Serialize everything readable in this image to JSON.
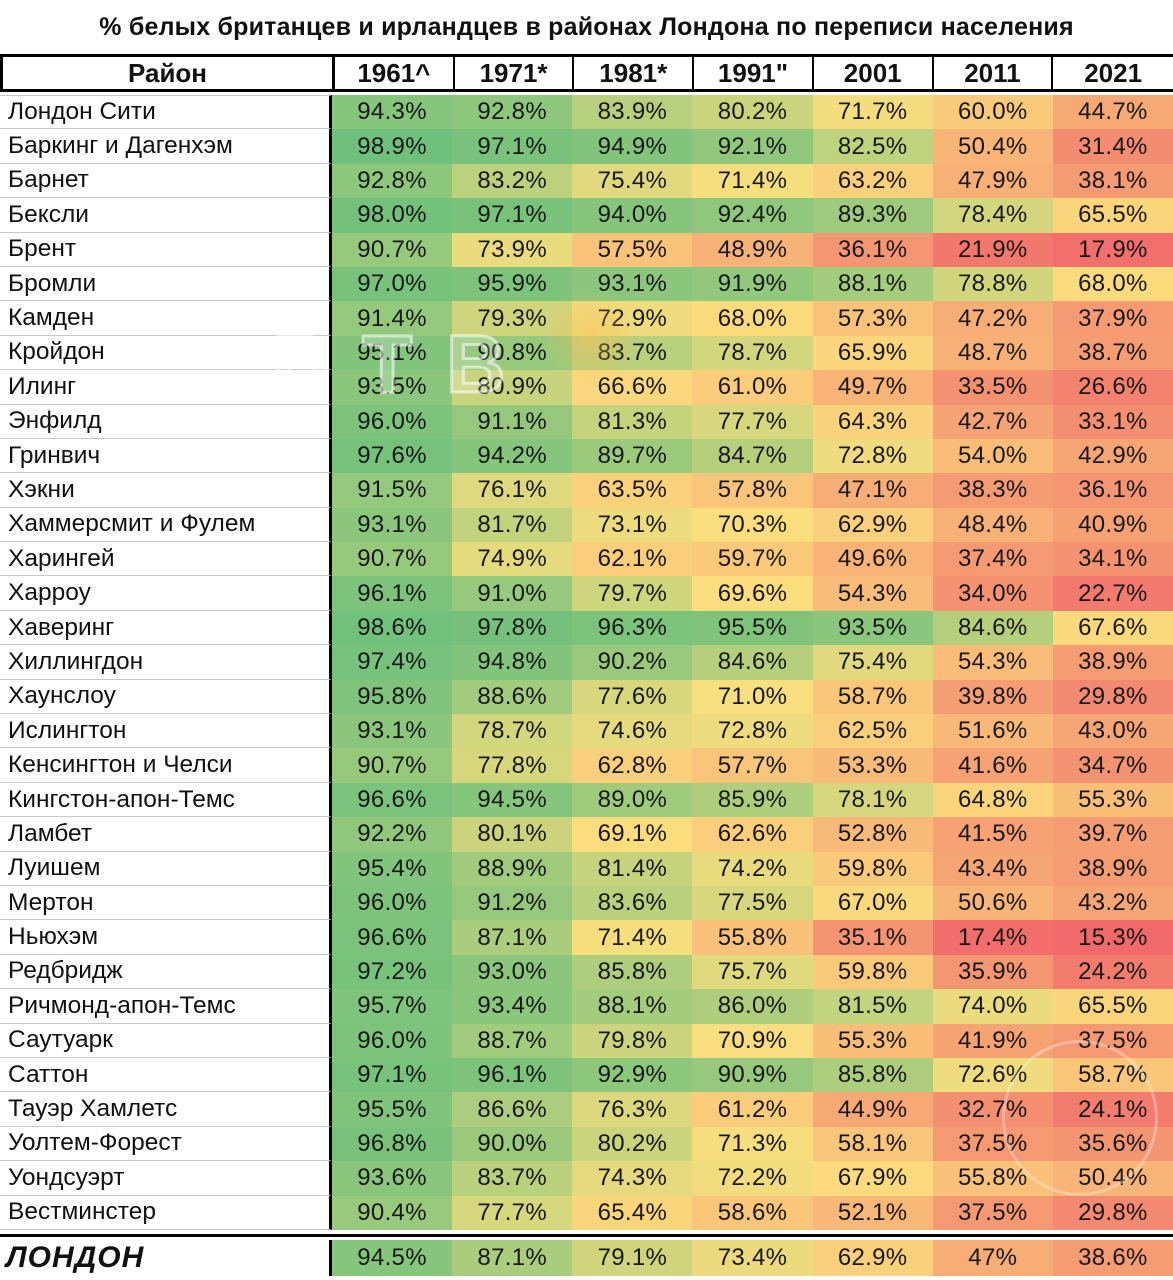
{
  "title": "% белых британцев и ирландцев в районах Лондона по переписи населения",
  "watermark_text": "ВТВ",
  "table": {
    "district_header": "Район",
    "year_headers": [
      "1961^",
      "1971*",
      "1981*",
      "1991\"",
      "2001",
      "2011",
      "2021"
    ],
    "value_suffix": "%"
  },
  "chart_data": {
    "type": "heatmap",
    "title": "% белых британцев и ирландцев в районах Лондона по переписи населения",
    "columns": [
      "1961",
      "1971",
      "1981",
      "1991",
      "2001",
      "2011",
      "2021"
    ],
    "rows": [
      {
        "name": "Лондон Сити",
        "values": [
          94.3,
          92.8,
          83.9,
          80.2,
          71.7,
          60.0,
          44.7
        ]
      },
      {
        "name": "Баркинг и Дагенхэм",
        "values": [
          98.9,
          97.1,
          94.9,
          92.1,
          82.5,
          50.4,
          31.4
        ]
      },
      {
        "name": "Барнет",
        "values": [
          92.8,
          83.2,
          75.4,
          71.4,
          63.2,
          47.9,
          38.1
        ]
      },
      {
        "name": "Бексли",
        "values": [
          98.0,
          97.1,
          94.0,
          92.4,
          89.3,
          78.4,
          65.5
        ]
      },
      {
        "name": "Брент",
        "values": [
          90.7,
          73.9,
          57.5,
          48.9,
          36.1,
          21.9,
          17.9
        ]
      },
      {
        "name": "Бромли",
        "values": [
          97.0,
          95.9,
          93.1,
          91.9,
          88.1,
          78.8,
          68.0
        ]
      },
      {
        "name": "Камден",
        "values": [
          91.4,
          79.3,
          72.9,
          68.0,
          57.3,
          47.2,
          37.9
        ]
      },
      {
        "name": "Кройдон",
        "values": [
          95.1,
          90.8,
          83.7,
          78.7,
          65.9,
          48.7,
          38.7
        ]
      },
      {
        "name": "Илинг",
        "values": [
          93.5,
          80.9,
          66.6,
          61.0,
          49.7,
          33.5,
          26.6
        ]
      },
      {
        "name": "Энфилд",
        "values": [
          96.0,
          91.1,
          81.3,
          77.7,
          64.3,
          42.7,
          33.1
        ]
      },
      {
        "name": "Гринвич",
        "values": [
          97.6,
          94.2,
          89.7,
          84.7,
          72.8,
          54.0,
          42.9
        ]
      },
      {
        "name": "Хэкни",
        "values": [
          91.5,
          76.1,
          63.5,
          57.8,
          47.1,
          38.3,
          36.1
        ]
      },
      {
        "name": "Хаммерсмит и Фулем",
        "values": [
          93.1,
          81.7,
          73.1,
          70.3,
          62.9,
          48.4,
          40.9
        ]
      },
      {
        "name": "Харингей",
        "values": [
          90.7,
          74.9,
          62.1,
          59.7,
          49.6,
          37.4,
          34.1
        ]
      },
      {
        "name": "Харроу",
        "values": [
          96.1,
          91.0,
          79.7,
          69.6,
          54.3,
          34.0,
          22.7
        ]
      },
      {
        "name": "Хаверинг",
        "values": [
          98.6,
          97.8,
          96.3,
          95.5,
          93.5,
          84.6,
          67.6
        ]
      },
      {
        "name": "Хиллингдон",
        "values": [
          97.4,
          94.8,
          90.2,
          84.6,
          75.4,
          54.3,
          38.9
        ]
      },
      {
        "name": "Хаунслоу",
        "values": [
          95.8,
          88.6,
          77.6,
          71.0,
          58.7,
          39.8,
          29.8
        ]
      },
      {
        "name": "Ислингтон",
        "values": [
          93.1,
          78.7,
          74.6,
          72.8,
          62.5,
          51.6,
          43.0
        ]
      },
      {
        "name": "Кенсингтон и Челси",
        "values": [
          90.7,
          77.8,
          62.8,
          57.7,
          53.3,
          41.6,
          34.7
        ]
      },
      {
        "name": "Кингстон-апон-Темс",
        "values": [
          96.6,
          94.5,
          89.0,
          85.9,
          78.1,
          64.8,
          55.3
        ]
      },
      {
        "name": "Ламбет",
        "values": [
          92.2,
          80.1,
          69.1,
          62.6,
          52.8,
          41.5,
          39.7
        ]
      },
      {
        "name": "Луишем",
        "values": [
          95.4,
          88.9,
          81.4,
          74.2,
          59.8,
          43.4,
          38.9
        ]
      },
      {
        "name": "Мертон",
        "values": [
          96.0,
          91.2,
          83.6,
          77.5,
          67.0,
          50.6,
          43.2
        ]
      },
      {
        "name": "Ньюхэм",
        "values": [
          96.6,
          87.1,
          71.4,
          55.8,
          35.1,
          17.4,
          15.3
        ]
      },
      {
        "name": "Редбридж",
        "values": [
          97.2,
          93.0,
          85.8,
          75.7,
          59.8,
          35.9,
          24.2
        ]
      },
      {
        "name": "Ричмонд-апон-Темс",
        "values": [
          95.7,
          93.4,
          88.1,
          86.0,
          81.5,
          74.0,
          65.5
        ]
      },
      {
        "name": "Саутуарк",
        "values": [
          96.0,
          88.7,
          79.8,
          70.9,
          55.3,
          41.9,
          37.5
        ]
      },
      {
        "name": "Саттон",
        "values": [
          97.1,
          96.1,
          92.9,
          90.9,
          85.8,
          72.6,
          58.7
        ]
      },
      {
        "name": "Тауэр Хамлетс",
        "values": [
          95.5,
          86.6,
          76.3,
          61.2,
          44.9,
          32.7,
          24.1
        ]
      },
      {
        "name": "Уолтем-Форест",
        "values": [
          96.8,
          90.0,
          80.2,
          71.3,
          58.1,
          37.5,
          35.6
        ]
      },
      {
        "name": "Уондсуэрт",
        "values": [
          93.6,
          83.7,
          74.3,
          72.2,
          67.9,
          55.8,
          50.4
        ]
      },
      {
        "name": "Вестминстер",
        "values": [
          90.4,
          77.7,
          65.4,
          58.6,
          52.1,
          37.5,
          29.8
        ]
      }
    ],
    "total_row": {
      "name": "ЛОНДОН",
      "values": [
        94.5,
        87.1,
        79.1,
        73.4,
        62.9,
        47,
        38.6
      ],
      "display": [
        "94.5%",
        "87.1%",
        "79.1%",
        "73.4%",
        "62.9%",
        "47%",
        "38.6%"
      ]
    },
    "color_scale": {
      "min": {
        "value": 15,
        "color": "#F0696B"
      },
      "mid": {
        "value": 70,
        "color": "#FCDF7E"
      },
      "max": {
        "value": 99,
        "color": "#6FC07C"
      }
    }
  }
}
